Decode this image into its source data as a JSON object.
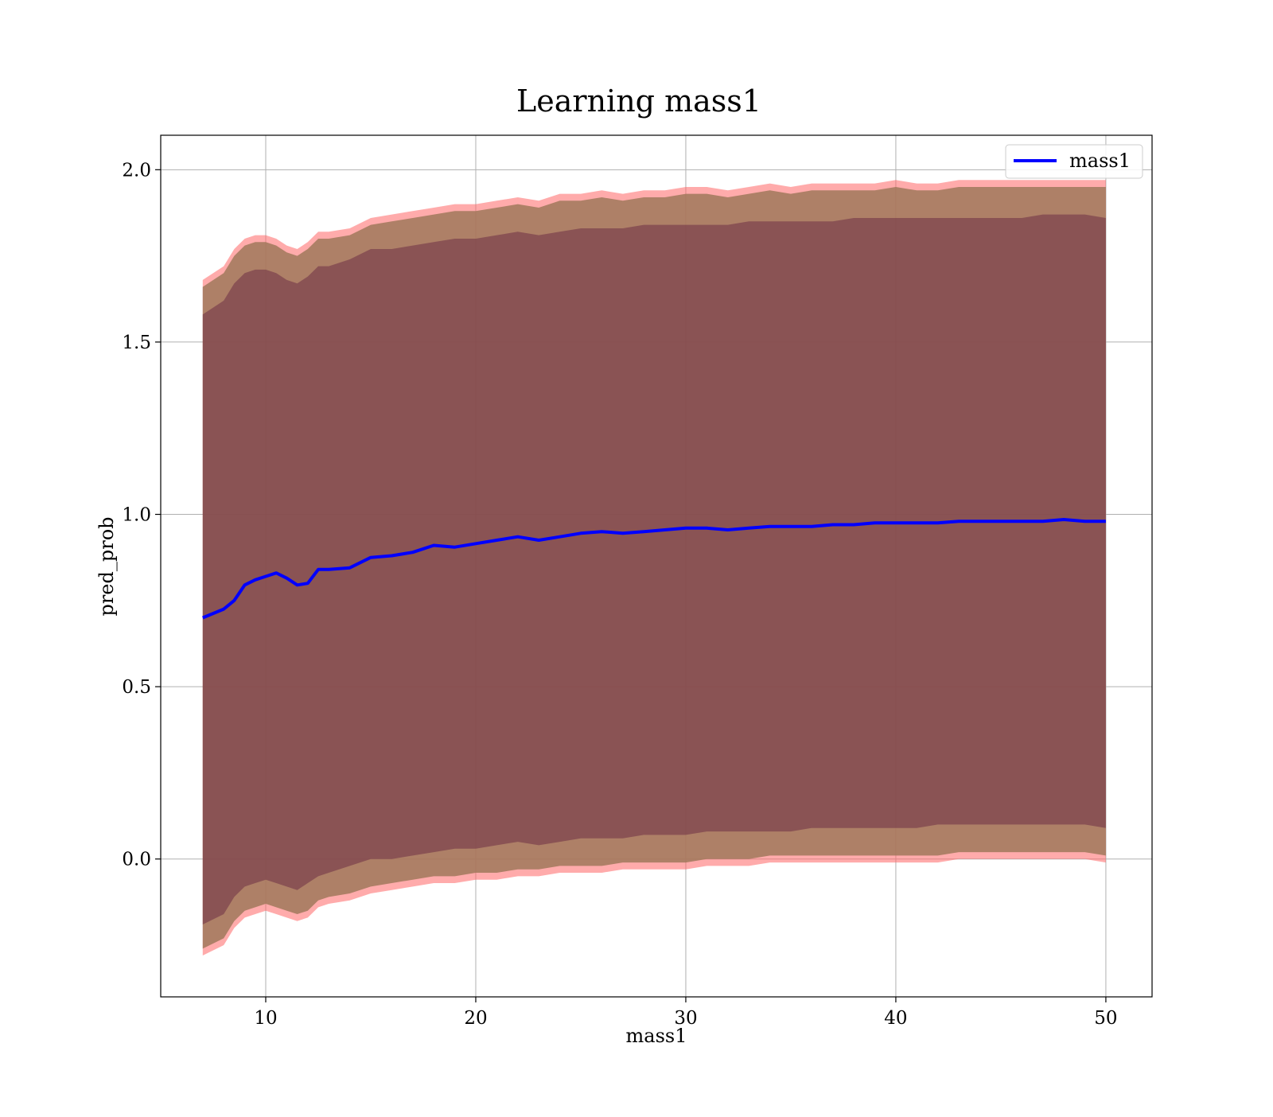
{
  "chart_data": {
    "type": "area",
    "title": "Learning mass1",
    "xlabel": "mass1",
    "ylabel": "pred_prob",
    "xlim": [
      5,
      52.2
    ],
    "ylim": [
      -0.4,
      2.1
    ],
    "xticks": [
      10,
      20,
      30,
      40,
      50
    ],
    "yticks": [
      0.0,
      0.5,
      1.0,
      1.5,
      2.0
    ],
    "xtick_labels": [
      "10",
      "20",
      "30",
      "40",
      "50"
    ],
    "ytick_labels": [
      "0.0",
      "0.5",
      "1.0",
      "1.5",
      "2.0"
    ],
    "grid": true,
    "legend": {
      "position": "top-right",
      "entries": [
        "mass1"
      ]
    },
    "colors": {
      "line": "#0000ff",
      "outer_band": "#ff6666",
      "middle_band": "#a0785a",
      "inner_band": "#6e2d46",
      "grid": "#b0b0b0"
    },
    "x": [
      7,
      8,
      8.5,
      9,
      9.5,
      10,
      10.5,
      11,
      11.5,
      12,
      12.5,
      13,
      14,
      15,
      16,
      17,
      18,
      19,
      20,
      21,
      22,
      23,
      24,
      25,
      26,
      27,
      28,
      29,
      30,
      31,
      32,
      33,
      34,
      35,
      36,
      37,
      38,
      39,
      40,
      41,
      42,
      43,
      44,
      45,
      46,
      47,
      48,
      49,
      50
    ],
    "series": [
      {
        "name": "mass1",
        "values": [
          0.7,
          0.725,
          0.75,
          0.795,
          0.81,
          0.82,
          0.83,
          0.815,
          0.795,
          0.8,
          0.84,
          0.84,
          0.845,
          0.875,
          0.88,
          0.89,
          0.91,
          0.905,
          0.915,
          0.925,
          0.935,
          0.925,
          0.935,
          0.945,
          0.95,
          0.945,
          0.95,
          0.955,
          0.96,
          0.96,
          0.955,
          0.96,
          0.965,
          0.965,
          0.965,
          0.97,
          0.97,
          0.975,
          0.975,
          0.975,
          0.975,
          0.98,
          0.98,
          0.98,
          0.98,
          0.98,
          0.985,
          0.98,
          0.98
        ]
      }
    ],
    "bands": [
      {
        "role": "outer",
        "upper": [
          1.68,
          1.72,
          1.77,
          1.8,
          1.81,
          1.81,
          1.8,
          1.78,
          1.77,
          1.79,
          1.82,
          1.82,
          1.83,
          1.86,
          1.87,
          1.88,
          1.89,
          1.9,
          1.9,
          1.91,
          1.92,
          1.91,
          1.93,
          1.93,
          1.94,
          1.93,
          1.94,
          1.94,
          1.95,
          1.95,
          1.94,
          1.95,
          1.96,
          1.95,
          1.96,
          1.96,
          1.96,
          1.96,
          1.97,
          1.96,
          1.96,
          1.97,
          1.97,
          1.97,
          1.97,
          1.97,
          1.97,
          1.97,
          1.97
        ],
        "lower": [
          -0.28,
          -0.25,
          -0.2,
          -0.17,
          -0.16,
          -0.15,
          -0.16,
          -0.17,
          -0.18,
          -0.17,
          -0.14,
          -0.13,
          -0.12,
          -0.1,
          -0.09,
          -0.08,
          -0.07,
          -0.07,
          -0.06,
          -0.06,
          -0.05,
          -0.05,
          -0.04,
          -0.04,
          -0.04,
          -0.03,
          -0.03,
          -0.03,
          -0.03,
          -0.02,
          -0.02,
          -0.02,
          -0.01,
          -0.01,
          -0.01,
          -0.01,
          -0.01,
          -0.01,
          -0.01,
          -0.01,
          -0.01,
          0.0,
          0.0,
          0.0,
          0.0,
          0.0,
          0.0,
          0.0,
          -0.01
        ]
      },
      {
        "role": "middle",
        "upper": [
          1.66,
          1.7,
          1.75,
          1.78,
          1.79,
          1.79,
          1.78,
          1.76,
          1.75,
          1.77,
          1.8,
          1.8,
          1.81,
          1.84,
          1.85,
          1.86,
          1.87,
          1.88,
          1.88,
          1.89,
          1.9,
          1.89,
          1.91,
          1.91,
          1.92,
          1.91,
          1.92,
          1.92,
          1.93,
          1.93,
          1.92,
          1.93,
          1.94,
          1.93,
          1.94,
          1.94,
          1.94,
          1.94,
          1.95,
          1.94,
          1.94,
          1.95,
          1.95,
          1.95,
          1.95,
          1.95,
          1.95,
          1.95,
          1.95
        ],
        "lower": [
          -0.26,
          -0.23,
          -0.18,
          -0.15,
          -0.14,
          -0.13,
          -0.14,
          -0.15,
          -0.16,
          -0.15,
          -0.12,
          -0.11,
          -0.1,
          -0.08,
          -0.07,
          -0.06,
          -0.05,
          -0.05,
          -0.04,
          -0.04,
          -0.03,
          -0.03,
          -0.02,
          -0.02,
          -0.02,
          -0.01,
          -0.01,
          -0.01,
          -0.01,
          0.0,
          0.0,
          0.0,
          0.01,
          0.01,
          0.01,
          0.01,
          0.01,
          0.01,
          0.01,
          0.01,
          0.01,
          0.02,
          0.02,
          0.02,
          0.02,
          0.02,
          0.02,
          0.02,
          0.01
        ]
      },
      {
        "role": "inner",
        "upper": [
          1.58,
          1.62,
          1.67,
          1.7,
          1.71,
          1.71,
          1.7,
          1.68,
          1.67,
          1.69,
          1.72,
          1.72,
          1.74,
          1.77,
          1.77,
          1.78,
          1.79,
          1.8,
          1.8,
          1.81,
          1.82,
          1.81,
          1.82,
          1.83,
          1.83,
          1.83,
          1.84,
          1.84,
          1.84,
          1.84,
          1.84,
          1.85,
          1.85,
          1.85,
          1.85,
          1.85,
          1.86,
          1.86,
          1.86,
          1.86,
          1.86,
          1.86,
          1.86,
          1.86,
          1.86,
          1.87,
          1.87,
          1.87,
          1.86
        ],
        "lower": [
          -0.19,
          -0.16,
          -0.11,
          -0.08,
          -0.07,
          -0.06,
          -0.07,
          -0.08,
          -0.09,
          -0.07,
          -0.05,
          -0.04,
          -0.02,
          0.0,
          0.0,
          0.01,
          0.02,
          0.03,
          0.03,
          0.04,
          0.05,
          0.04,
          0.05,
          0.06,
          0.06,
          0.06,
          0.07,
          0.07,
          0.07,
          0.08,
          0.08,
          0.08,
          0.08,
          0.08,
          0.09,
          0.09,
          0.09,
          0.09,
          0.09,
          0.09,
          0.1,
          0.1,
          0.1,
          0.1,
          0.1,
          0.1,
          0.1,
          0.1,
          0.09
        ]
      }
    ]
  }
}
